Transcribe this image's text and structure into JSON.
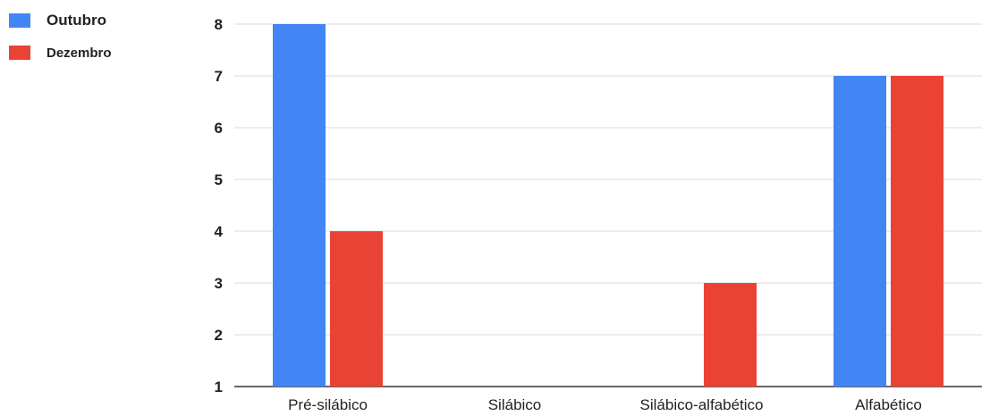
{
  "chart_data": {
    "type": "bar",
    "categories": [
      "Pré-silábico",
      "Silábico",
      "Silábico-alfabético",
      "Alfabético"
    ],
    "series": [
      {
        "name": "Outubro",
        "values": [
          8,
          null,
          null,
          7
        ],
        "color": "#4285f4"
      },
      {
        "name": "Dezembro",
        "values": [
          4,
          null,
          3,
          7
        ],
        "color": "#ea4335"
      }
    ],
    "yticks": [
      "1",
      "2",
      "3",
      "4",
      "5",
      "6",
      "7",
      "8"
    ],
    "ylim": [
      1,
      8
    ],
    "grid": true,
    "legend_position": "top-left",
    "colors": {
      "gridline": "#d9d9d9",
      "axis": "#333333",
      "text": "#222222"
    }
  }
}
